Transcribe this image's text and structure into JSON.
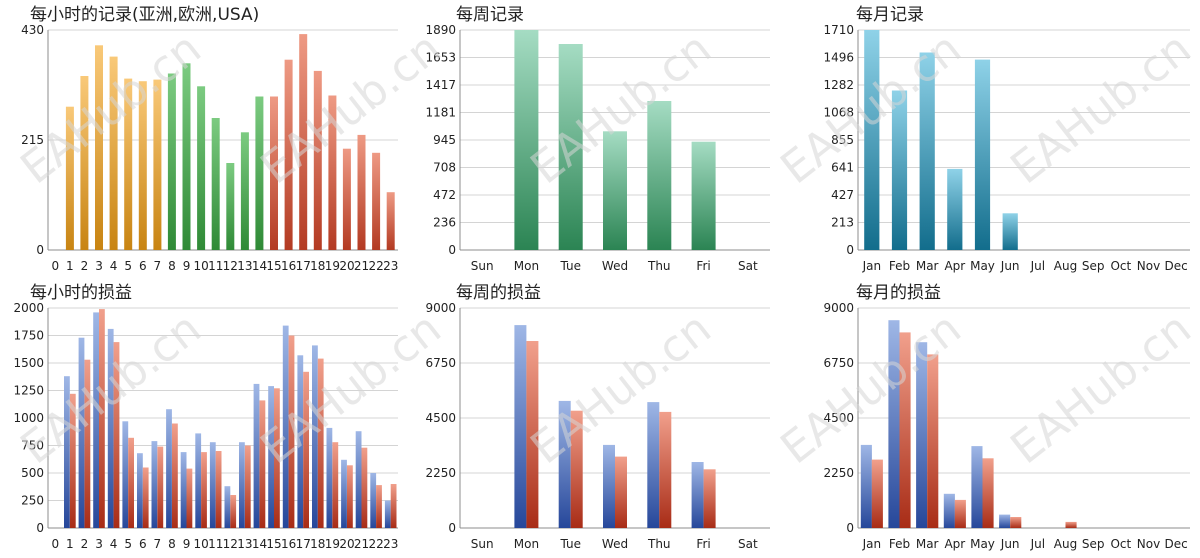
{
  "watermark": "EAHub.cn",
  "colors": {
    "orange": [
      "#f9c979",
      "#c88412"
    ],
    "green": [
      "#7ccb81",
      "#2f8a36"
    ],
    "red": [
      "#ee9a84",
      "#b33a22"
    ],
    "teal_green": [
      "#a5dcc3",
      "#2b8453"
    ],
    "cyan": [
      "#8fd2e8",
      "#126d8c"
    ],
    "blue": [
      "#9fb7e6",
      "#26479a"
    ],
    "profit_red": [
      "#f1a08c",
      "#a82c16"
    ]
  },
  "chart_data": [
    {
      "type": "bar",
      "title": "每小时的记录(亚洲,欧洲,USA)",
      "categories": [
        "0",
        "1",
        "2",
        "3",
        "4",
        "5",
        "6",
        "7",
        "8",
        "9",
        "10",
        "11",
        "12",
        "13",
        "14",
        "15",
        "16",
        "17",
        "18",
        "19",
        "20",
        "21",
        "22",
        "23"
      ],
      "series": [
        {
          "values": [
            0,
            280,
            340,
            400,
            378,
            335,
            330,
            333,
            345,
            365,
            320,
            258,
            170,
            230,
            300,
            300,
            372,
            422,
            350,
            302,
            198,
            225,
            190,
            113
          ]
        }
      ],
      "bar_colors": [
        "orange",
        "orange",
        "orange",
        "orange",
        "orange",
        "orange",
        "orange",
        "orange",
        "green",
        "green",
        "green",
        "green",
        "green",
        "green",
        "green",
        "red",
        "red",
        "red",
        "red",
        "red",
        "red",
        "red",
        "red",
        "red"
      ],
      "yticks": [
        "0",
        "215",
        "430"
      ],
      "ylim": [
        0,
        430
      ]
    },
    {
      "type": "bar",
      "title": "每周记录",
      "categories": [
        "Sun",
        "Mon",
        "Tue",
        "Wed",
        "Thu",
        "Fri",
        "Sat"
      ],
      "series": [
        {
          "values": [
            0,
            1890,
            1770,
            1020,
            1280,
            930,
            0
          ]
        }
      ],
      "bar_color": "teal_green",
      "yticks": [
        "0",
        "236",
        "472",
        "708",
        "945",
        "1181",
        "1417",
        "1653",
        "1890"
      ],
      "ylim": [
        0,
        1890
      ]
    },
    {
      "type": "bar",
      "title": "每月记录",
      "categories": [
        "Jan",
        "Feb",
        "Mar",
        "Apr",
        "May",
        "Jun",
        "Jul",
        "Aug",
        "Sep",
        "Oct",
        "Nov",
        "Dec"
      ],
      "series": [
        {
          "values": [
            1710,
            1240,
            1535,
            630,
            1480,
            285,
            0,
            0,
            0,
            0,
            0,
            0
          ]
        }
      ],
      "bar_color": "cyan",
      "yticks": [
        "0",
        "213",
        "427",
        "641",
        "855",
        "1068",
        "1282",
        "1496",
        "1710"
      ],
      "ylim": [
        0,
        1710
      ]
    },
    {
      "type": "bar",
      "title": "每小时的损益",
      "categories": [
        "0",
        "1",
        "2",
        "3",
        "4",
        "5",
        "6",
        "7",
        "8",
        "9",
        "10",
        "11",
        "12",
        "13",
        "14",
        "15",
        "16",
        "17",
        "18",
        "19",
        "20",
        "21",
        "22",
        "23"
      ],
      "series": [
        {
          "color": "blue",
          "values": [
            0,
            1380,
            1730,
            1960,
            1810,
            970,
            680,
            790,
            1080,
            690,
            860,
            780,
            380,
            780,
            1310,
            1290,
            1840,
            1570,
            1660,
            910,
            620,
            880,
            500,
            250
          ]
        },
        {
          "color": "profit_red",
          "values": [
            0,
            1220,
            1530,
            1990,
            1690,
            820,
            550,
            740,
            950,
            540,
            690,
            700,
            300,
            750,
            1160,
            1270,
            1750,
            1420,
            1540,
            780,
            570,
            730,
            390,
            400
          ]
        }
      ],
      "yticks": [
        "0",
        "250",
        "500",
        "750",
        "1000",
        "1250",
        "1500",
        "1750",
        "2000"
      ],
      "ylim": [
        0,
        2000
      ]
    },
    {
      "type": "bar",
      "title": "每周的损益",
      "categories": [
        "Sun",
        "Mon",
        "Tue",
        "Wed",
        "Thu",
        "Fri",
        "Sat"
      ],
      "series": [
        {
          "color": "blue",
          "values": [
            0,
            8300,
            5200,
            3400,
            5150,
            2700,
            0
          ]
        },
        {
          "color": "profit_red",
          "values": [
            0,
            7650,
            4800,
            2920,
            4750,
            2400,
            0
          ]
        }
      ],
      "yticks": [
        "0",
        "2250",
        "4500",
        "6750",
        "9000"
      ],
      "ylim": [
        0,
        9000
      ]
    },
    {
      "type": "bar",
      "title": "每月的损益",
      "categories": [
        "Jan",
        "Feb",
        "Mar",
        "Apr",
        "May",
        "Jun",
        "Jul",
        "Aug",
        "Sep",
        "Oct",
        "Nov",
        "Dec"
      ],
      "series": [
        {
          "color": "blue",
          "values": [
            3400,
            8500,
            7600,
            1400,
            3350,
            550,
            0,
            0,
            0,
            0,
            0,
            0
          ]
        },
        {
          "color": "profit_red",
          "values": [
            2800,
            8000,
            7100,
            1150,
            2850,
            450,
            0,
            250,
            0,
            0,
            0,
            0
          ]
        }
      ],
      "yticks": [
        "0",
        "2250",
        "4500",
        "6750",
        "9000"
      ],
      "ylim": [
        0,
        9000
      ]
    }
  ]
}
